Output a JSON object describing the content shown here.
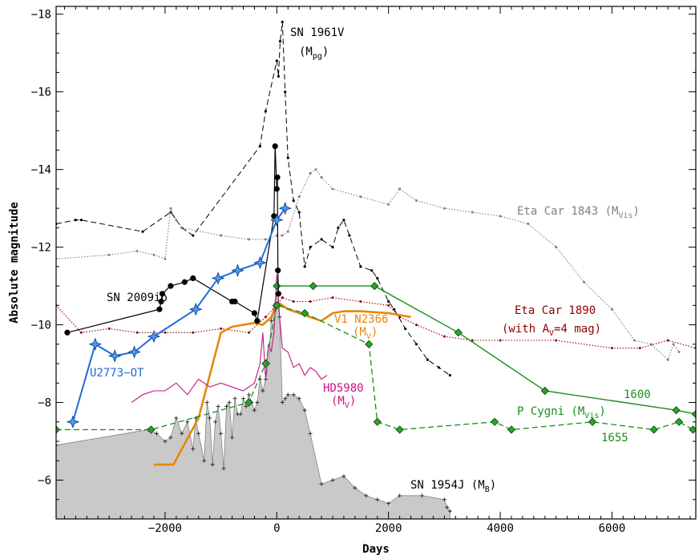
{
  "chart_data": {
    "type": "line",
    "xlabel": "Days",
    "ylabel": "Absolute magnitude",
    "xlim": [
      -3950,
      7500
    ],
    "ylim": [
      -5,
      -18.2
    ],
    "y_inverted": true,
    "x_ticks": [
      -2000,
      0,
      2000,
      4000,
      6000
    ],
    "x_tick_labels": [
      "−2000",
      "0",
      "2000",
      "4000",
      "6000"
    ],
    "y_ticks": [
      -6,
      -8,
      -10,
      -12,
      -14,
      -16,
      -18
    ],
    "y_tick_labels": [
      "−6",
      "−8",
      "−10",
      "−12",
      "−14",
      "−16",
      "−18"
    ],
    "grid": false,
    "legend": "none",
    "series": [
      {
        "name": "SN 1954J (M",
        "name_sub": "B",
        "name_end": ")",
        "style": "filled-area",
        "color": "#c9c9c9",
        "x": [
          -3950,
          -2300,
          -2150,
          -2000,
          -1900,
          -1800,
          -1700,
          -1600,
          -1500,
          -1450,
          -1400,
          -1300,
          -1250,
          -1200,
          -1150,
          -1100,
          -1050,
          -1000,
          -950,
          -900,
          -850,
          -800,
          -750,
          -700,
          -650,
          -600,
          -550,
          -500,
          -450,
          -400,
          -350,
          -300,
          -250,
          -200,
          -150,
          -100,
          -50,
          0,
          50,
          100,
          150,
          200,
          300,
          400,
          500,
          600,
          800,
          1000,
          1200,
          1400,
          1600,
          1800,
          2000,
          2200,
          2600,
          3000,
          3050,
          3100
        ],
        "y": [
          -6.9,
          -7.3,
          -7.2,
          -7.0,
          -7.1,
          -7.6,
          -7.2,
          -7.5,
          -6.8,
          -7.6,
          -7.2,
          -6.5,
          -8.0,
          -7.6,
          -6.4,
          -7.5,
          -7.9,
          -7.2,
          -6.3,
          -7.9,
          -8.0,
          -7.1,
          -8.1,
          -7.7,
          -7.7,
          -8.1,
          -7.9,
          -8.2,
          -8.0,
          -7.8,
          -8.0,
          -8.6,
          -8.3,
          -8.6,
          -9.0,
          -10.1,
          -10.5,
          -10.8,
          -10.2,
          -8.0,
          -8.1,
          -8.2,
          -8.2,
          -8.1,
          -7.8,
          -7.2,
          -5.9,
          -6.0,
          -6.1,
          -5.8,
          -5.6,
          -5.5,
          -5.4,
          -5.6,
          -5.6,
          -5.5,
          -5.3,
          -5.2
        ]
      },
      {
        "name": "SN 1961V",
        "sub_label_pre": "(M",
        "sub_label_sub": "pg",
        "sub_label_end": ")",
        "style": "dashed+points",
        "color": "#000000",
        "x": [
          -3950,
          -3600,
          -3500,
          -2400,
          -1900,
          -1700,
          -1500,
          -300,
          -200,
          0,
          30,
          60,
          100,
          150,
          200,
          300,
          400,
          500,
          600,
          800,
          1000,
          1100,
          1200,
          1300,
          1500,
          1700,
          1800,
          2000,
          2100,
          2300,
          2500,
          2700,
          2900,
          3100
        ],
        "y": [
          -12.6,
          -12.7,
          -12.7,
          -12.4,
          -12.9,
          -12.5,
          -12.3,
          -14.6,
          -15.5,
          -16.8,
          -16.4,
          -17.3,
          -17.8,
          -16.0,
          -14.3,
          -13.2,
          -12.9,
          -11.5,
          -12.0,
          -12.2,
          -12.0,
          -12.5,
          -12.7,
          -12.3,
          -11.5,
          -11.4,
          -11.2,
          -10.6,
          -10.4,
          -9.9,
          -9.5,
          -9.1,
          -8.9,
          -8.7
        ]
      },
      {
        "name": "Eta Car 1843 (M",
        "name_sub": "Vis",
        "name_end": ")",
        "style": "dotted+points",
        "color": "#7f7f7f",
        "x": [
          -3950,
          -3000,
          -2500,
          -2200,
          -2000,
          -1900,
          -1800,
          -1700,
          -1000,
          -500,
          -200,
          0,
          100,
          200,
          400,
          600,
          700,
          800,
          1000,
          1500,
          2000,
          2200,
          2500,
          3000,
          3500,
          4000,
          4500,
          5000,
          5500,
          6000,
          6400,
          6700,
          7000,
          7100,
          7200
        ],
        "y": [
          -11.7,
          -11.8,
          -11.9,
          -11.8,
          -11.7,
          -13.0,
          -12.7,
          -12.5,
          -12.3,
          -12.2,
          -12.2,
          -12.3,
          -12.3,
          -12.4,
          -13.3,
          -13.9,
          -14.0,
          -13.8,
          -13.5,
          -13.3,
          -13.1,
          -13.5,
          -13.2,
          -13.0,
          -12.9,
          -12.8,
          -12.6,
          -12.0,
          -11.1,
          -10.4,
          -9.6,
          -9.5,
          -9.1,
          -9.5,
          -9.3
        ]
      },
      {
        "name": "Eta Car 1890",
        "sub_label_pre": "(with A",
        "sub_label_sub": "V",
        "sub_label_end": "=4 mag)",
        "style": "dotted+points",
        "color": "#8b0000",
        "x": [
          -3950,
          -3500,
          -3000,
          -2500,
          -2000,
          -1500,
          -1000,
          -500,
          -200,
          0,
          100,
          300,
          600,
          1000,
          1500,
          2000,
          2200,
          2500,
          3000,
          3500,
          4000,
          5000,
          6000,
          6500,
          7000,
          7500
        ],
        "y": [
          -10.5,
          -9.8,
          -9.9,
          -9.8,
          -9.8,
          -9.8,
          -9.9,
          -9.8,
          -10.2,
          -10.5,
          -10.7,
          -10.6,
          -10.6,
          -10.7,
          -10.6,
          -10.5,
          -10.2,
          -10.0,
          -9.7,
          -9.6,
          -9.6,
          -9.6,
          -9.4,
          -9.4,
          -9.6,
          -9.4
        ]
      },
      {
        "name": "V1 N2366",
        "sub_label_pre": "(M",
        "sub_label_sub": "V",
        "sub_label_end": ")",
        "style": "thick-line",
        "color": "#e8860c",
        "x": [
          -2200,
          -1850,
          -1400,
          -1000,
          -800,
          -600,
          -400,
          -250,
          -100,
          0,
          50,
          200,
          400,
          600,
          800,
          1000,
          1200,
          1500,
          2000,
          2400
        ],
        "y": [
          -6.4,
          -6.4,
          -7.6,
          -9.8,
          -9.95,
          -10.0,
          -10.05,
          -10.0,
          -10.2,
          -10.5,
          -10.55,
          -10.4,
          -10.3,
          -10.2,
          -10.1,
          -10.3,
          -10.35,
          -10.35,
          -10.3,
          -10.2
        ]
      },
      {
        "name": "HD5980",
        "sub_label_pre": "(M",
        "sub_label_sub": "V",
        "sub_label_end": ")",
        "style": "thin-line",
        "color": "#c71585",
        "x": [
          -2600,
          -2400,
          -2200,
          -2000,
          -1800,
          -1600,
          -1400,
          -1200,
          -1000,
          -800,
          -600,
          -400,
          -300,
          -250,
          -200,
          -150,
          -100,
          -50,
          0,
          50,
          100,
          200,
          300,
          400,
          500,
          600,
          700,
          800,
          900
        ],
        "y": [
          -8.0,
          -8.2,
          -8.3,
          -8.3,
          -8.5,
          -8.2,
          -8.6,
          -8.4,
          -8.5,
          -8.4,
          -8.3,
          -8.5,
          -9.0,
          -9.8,
          -8.6,
          -9.5,
          -9.3,
          -9.8,
          -11.3,
          -10.2,
          -9.4,
          -9.3,
          -8.9,
          -9.0,
          -8.7,
          -8.9,
          -8.8,
          -8.6,
          -8.7
        ]
      },
      {
        "name": "P Cygni (M",
        "name_sub": "Vis",
        "name_end": ")",
        "label_1600": "1600",
        "label_1655": "1655",
        "style": "solid+diamonds",
        "color": "#1a8c1a",
        "x": [
          0,
          650,
          1750,
          3250,
          4800,
          7150,
          7500
        ],
        "y": [
          -11.0,
          -11.0,
          -11.0,
          -9.8,
          -8.3,
          -7.8,
          -7.7
        ]
      },
      {
        "name": "P Cygni 1655",
        "style": "dashed+diamonds",
        "color": "#1a8c1a",
        "x": [
          -3950,
          -2250,
          -500,
          -200,
          0,
          500,
          1650,
          1800,
          2200,
          3900,
          4200,
          5650,
          6750,
          7200,
          7450
        ],
        "y": [
          -7.3,
          -7.3,
          -8.0,
          -9.0,
          -10.5,
          -10.3,
          -9.5,
          -7.5,
          -7.3,
          -7.5,
          -7.3,
          -7.5,
          -7.3,
          -7.5,
          -7.3
        ]
      },
      {
        "name": "SN 2009ip",
        "style": "solid+circles",
        "color": "#000000",
        "x": [
          -3750,
          -2100,
          -2070,
          -2050,
          -1900,
          -1650,
          -1500,
          -800,
          -750,
          -400,
          -350,
          -50,
          -30,
          0,
          10,
          20,
          30
        ],
        "y": [
          -9.8,
          -10.4,
          -10.6,
          -10.8,
          -11.0,
          -11.1,
          -11.2,
          -10.6,
          -10.6,
          -10.3,
          -10.1,
          -12.8,
          -14.6,
          -13.5,
          -13.8,
          -11.4,
          -10.8
        ]
      },
      {
        "name": "U2773−OT",
        "style": "solid+stars",
        "color": "#1f6cd6",
        "x": [
          -3650,
          -3250,
          -2900,
          -2550,
          -2200,
          -1450,
          -1050,
          -700,
          -300,
          0,
          150
        ],
        "y": [
          -7.5,
          -9.5,
          -9.2,
          -9.3,
          -9.7,
          -10.4,
          -11.2,
          -11.4,
          -11.6,
          -12.7,
          -13.0
        ]
      }
    ]
  }
}
